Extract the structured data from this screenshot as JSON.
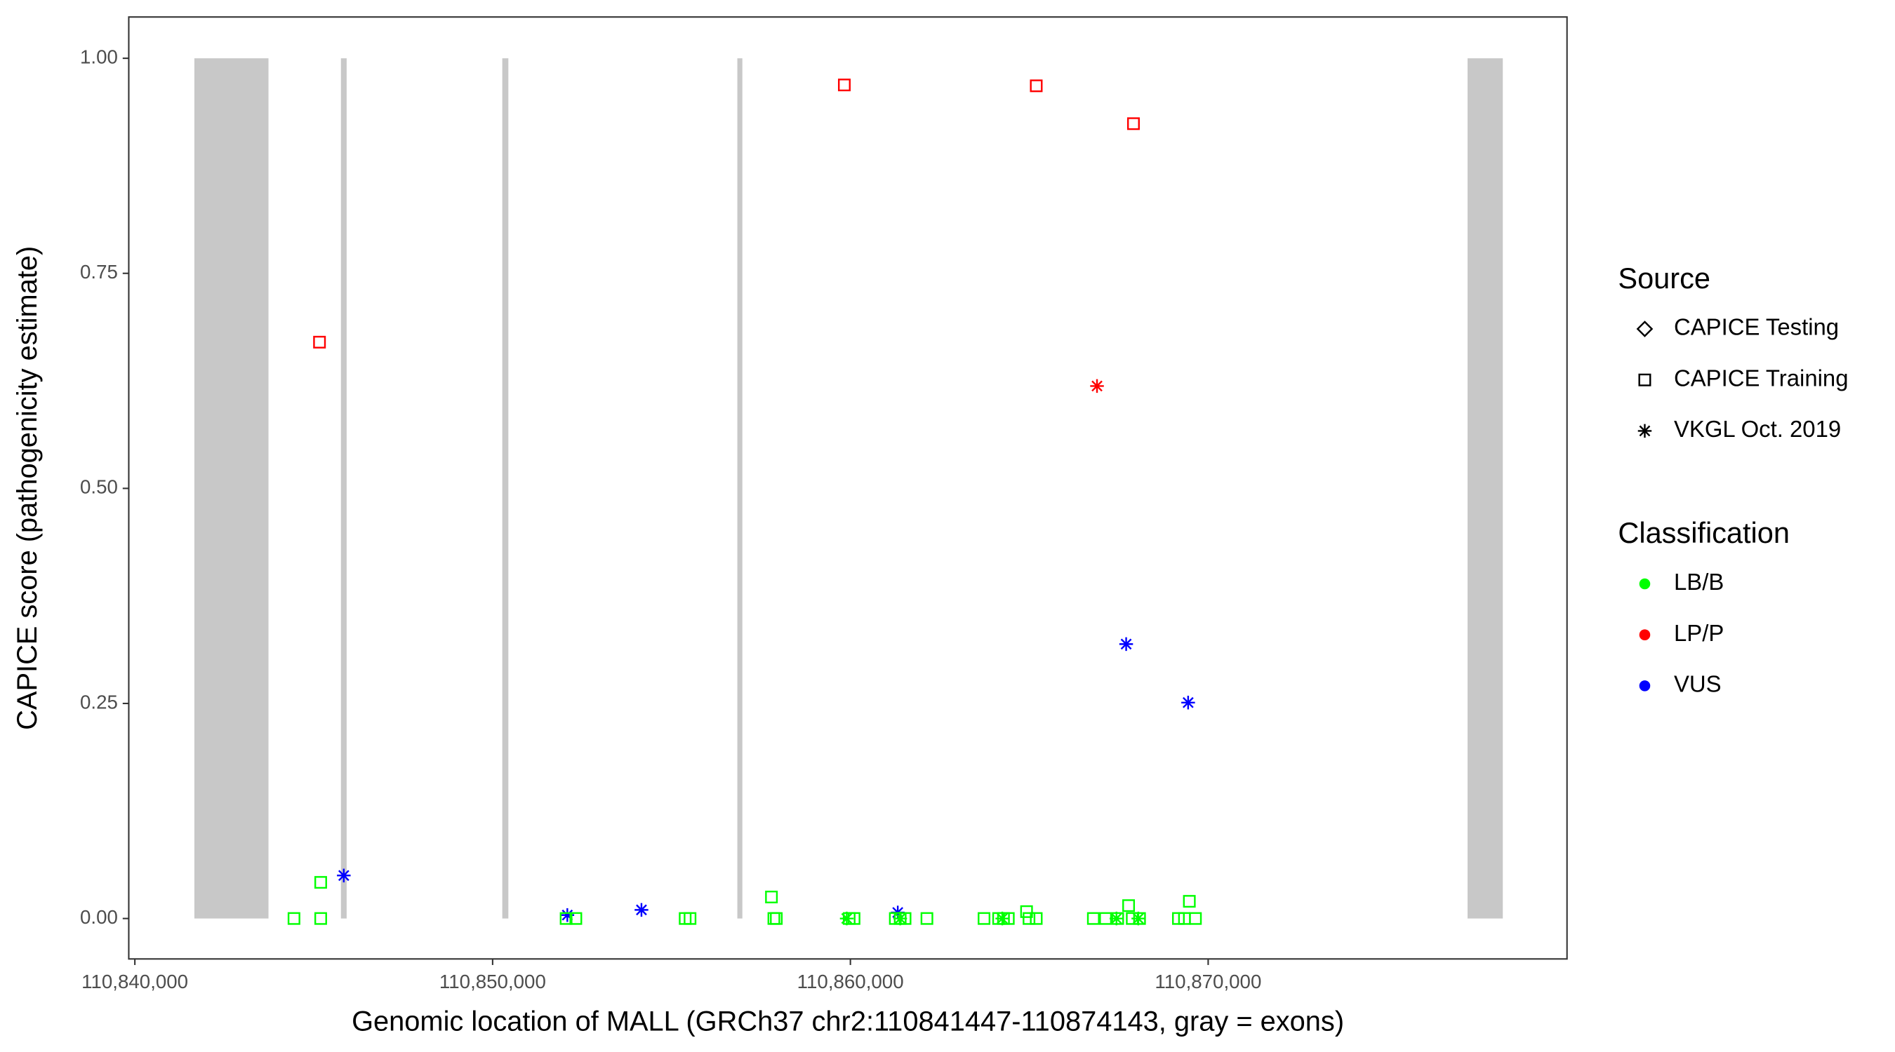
{
  "chart_data": {
    "type": "scatter",
    "x_label": "Genomic location of MALL (GRCh37 chr2:110841447-110874143, gray = exons)",
    "y_label": "CAPICE score (pathogenicity estimate)",
    "xlim": [
      110839830,
      110880030
    ],
    "ylim": [
      -0.047,
      1.048
    ],
    "xticks": [
      {
        "value": 110840000,
        "label": "110,840,000"
      },
      {
        "value": 110850000,
        "label": "110,850,000"
      },
      {
        "value": 110860000,
        "label": "110,860,000"
      },
      {
        "value": 110870000,
        "label": "110,870,000"
      }
    ],
    "yticks": [
      {
        "value": 0,
        "label": "0.00"
      },
      {
        "value": 0.25,
        "label": "0.25"
      },
      {
        "value": 0.5,
        "label": "0.50"
      },
      {
        "value": 0.75,
        "label": "0.75"
      },
      {
        "value": 1,
        "label": "1.00"
      }
    ],
    "exons": [
      [
        110841664,
        110843735
      ],
      [
        110845760,
        110845920
      ],
      [
        110850270,
        110850440
      ],
      [
        110856840,
        110856980
      ],
      [
        110877250,
        110878235
      ]
    ],
    "exon_color": "#c8c8c8",
    "source_legend": {
      "title": "Source",
      "entries": [
        {
          "name": "CAPICE Testing",
          "shape": "diamond"
        },
        {
          "name": "CAPICE Training",
          "shape": "square"
        },
        {
          "name": "VKGL Oct. 2019",
          "shape": "star"
        }
      ]
    },
    "classification_legend": {
      "title": "Classification",
      "entries": [
        {
          "name": "LB/B",
          "color": "#00ff00"
        },
        {
          "name": "LP/P",
          "color": "#ff0000"
        },
        {
          "name": "VUS",
          "color": "#0000ff"
        }
      ]
    },
    "series": [
      {
        "source": "CAPICE Training",
        "classification": "LP/P",
        "x": [
          110845161,
          110859830,
          110865195,
          110867912
        ],
        "values": [
          0.67,
          0.969,
          0.968,
          0.924
        ]
      },
      {
        "source": "VKGL Oct. 2019",
        "classification": "LP/P",
        "x": [
          110866893
        ],
        "values": [
          0.619
        ]
      },
      {
        "source": "VKGL Oct. 2019",
        "classification": "VUS",
        "x": [
          110845840,
          110852088,
          110854160,
          110861324,
          110867708,
          110869440
        ],
        "values": [
          0.05,
          0.004,
          0.01,
          0.007,
          0.319,
          0.251
        ]
      },
      {
        "source": "CAPICE Training",
        "classification": "LB/B",
        "x": [
          110844448,
          110845195,
          110845195,
          110852054,
          110852326,
          110855382,
          110855518,
          110857793,
          110857861,
          110857929,
          110859966,
          110860102,
          110861256,
          110861392,
          110861528,
          110862139,
          110863735,
          110864143,
          110864279,
          110864414,
          110864924,
          110864992,
          110865195,
          110866791,
          110867131,
          110867471,
          110867776,
          110867878,
          110868082,
          110869168,
          110869338,
          110869474,
          110869644
        ],
        "values": [
          0,
          0.042,
          0,
          0,
          0,
          0,
          0,
          0.025,
          0,
          0,
          0,
          0,
          0,
          0,
          0,
          0,
          0,
          0,
          0,
          0,
          0.008,
          0,
          0,
          0,
          0,
          0,
          0.015,
          0,
          0,
          0,
          0,
          0.02,
          0
        ]
      },
      {
        "source": "VKGL Oct. 2019",
        "classification": "LB/B",
        "x": [
          110859898,
          110861392,
          110864245,
          110867437,
          110868048
        ],
        "values": [
          0,
          0,
          0,
          0,
          0
        ]
      }
    ]
  }
}
